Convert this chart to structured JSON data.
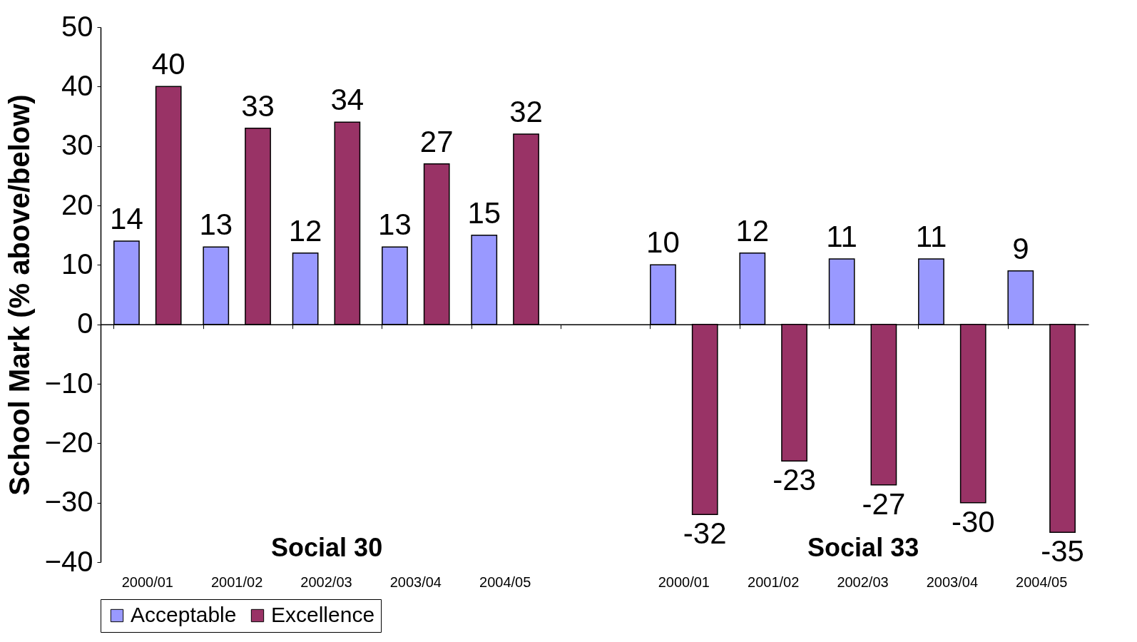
{
  "chart_data": {
    "type": "bar",
    "ylabel": "School Mark (% above/below)",
    "categories": [
      "2000/01",
      "2001/02",
      "2002/03",
      "2003/04",
      "2004/05",
      null,
      "2000/01",
      "2001/02",
      "2002/03",
      "2003/04",
      "2004/05"
    ],
    "series": [
      {
        "name": "Acceptable",
        "color": "#9999ff",
        "values": [
          14,
          13,
          12,
          13,
          15,
          null,
          10,
          12,
          11,
          11,
          9
        ]
      },
      {
        "name": "Excellence",
        "color": "#993366",
        "values": [
          40,
          33,
          34,
          27,
          32,
          null,
          -32,
          -23,
          -27,
          -30,
          -35
        ]
      }
    ],
    "ylim": [
      -40,
      50
    ],
    "yticks": [
      -40,
      -30,
      -20,
      -10,
      0,
      10,
      20,
      30,
      40,
      50
    ],
    "data_labels": true,
    "legend": "bottom",
    "annotations": [
      "Social 30",
      "Social 33"
    ]
  }
}
